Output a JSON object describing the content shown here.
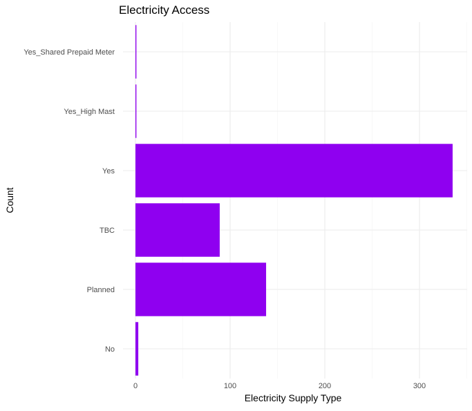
{
  "chart_data": {
    "type": "bar",
    "orientation": "horizontal",
    "title": "Electricity Access",
    "xlabel": "Electricity Supply Type",
    "ylabel": "Count",
    "categories": [
      "No",
      "Planned",
      "TBC",
      "Yes",
      "Yes_High Mast",
      "Yes_Shared Prepaid Meter"
    ],
    "values": [
      3,
      138,
      89,
      335,
      1,
      1
    ],
    "xlim": [
      0,
      350
    ],
    "x_ticks": [
      0,
      100,
      200,
      300
    ],
    "x_tick_labels": [
      "0",
      "100",
      "200",
      "300"
    ],
    "bar_color": "#8f00f0",
    "grid": true,
    "legend": "none"
  }
}
